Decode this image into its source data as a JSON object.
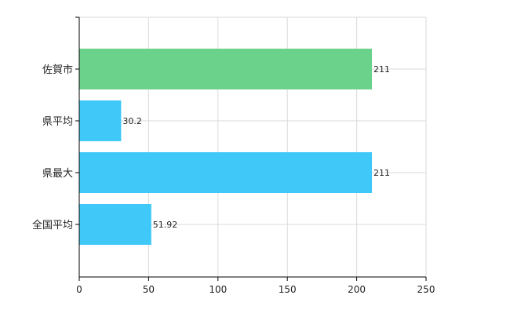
{
  "chart_data": {
    "type": "bar",
    "orientation": "horizontal",
    "categories": [
      "佐賀市",
      "県平均",
      "県最大",
      "全国平均"
    ],
    "values": [
      211,
      30.2,
      211,
      51.92
    ],
    "data_labels": [
      "211",
      "30.2",
      "211",
      "51.92"
    ],
    "xlim": [
      0,
      250
    ],
    "x_ticks": [
      0,
      50,
      100,
      150,
      200,
      250
    ],
    "x_tick_labels": [
      "0",
      "50",
      "100",
      "150",
      "200",
      "250"
    ],
    "grid": true,
    "legend": "none",
    "title": "",
    "xlabel": "",
    "ylabel": "",
    "colors": {
      "highlight": "#6ad28a",
      "default": "#3fc8f8",
      "grid": "#d9d9d9",
      "axis": "#000000"
    },
    "bar_colors": [
      "highlight",
      "default",
      "default",
      "default"
    ]
  }
}
